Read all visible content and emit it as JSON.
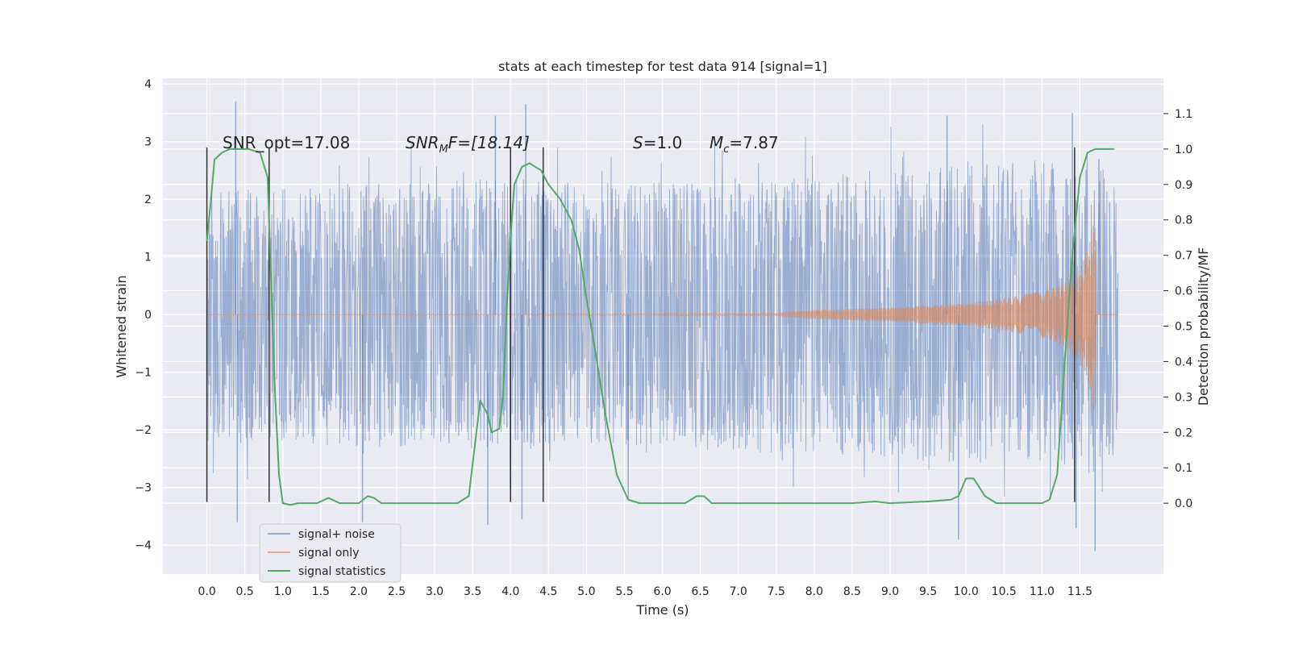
{
  "chart_data": {
    "type": "line",
    "title": "stats at each timestep for test data 914 [signal=1]",
    "xlabel": "Time (s)",
    "ylabel": "Whitened strain",
    "y2label": "Detection probability/MF",
    "xlim": [
      -0.58,
      12.6
    ],
    "ylim": [
      -4.5,
      4.1
    ],
    "y2lim": [
      -0.2,
      1.2
    ],
    "xticks": [
      "0.0",
      "0.5",
      "1.0",
      "1.5",
      "2.0",
      "2.5",
      "3.0",
      "3.5",
      "4.0",
      "4.5",
      "5.0",
      "5.5",
      "6.0",
      "6.5",
      "7.0",
      "7.5",
      "8.0",
      "8.5",
      "9.0",
      "9.5",
      "10.0",
      "10.5",
      "11.0",
      "11.5"
    ],
    "yticks": [
      "4",
      "3",
      "2",
      "1",
      "0",
      "−1",
      "−2",
      "−3",
      "−4"
    ],
    "y2ticks": [
      "1.1",
      "1.0",
      "0.9",
      "0.8",
      "0.7",
      "0.6",
      "0.5",
      "0.4",
      "0.3",
      "0.2",
      "0.1",
      "0.0"
    ],
    "grid": true,
    "legend_placement": "lower-left",
    "colors": {
      "signal_noise": "#4c72b0",
      "signal_only": "#dd8452",
      "signal_statistics": "#55a868",
      "background": "#eaeaf2",
      "marker_lines": "#333333"
    },
    "annotations": {
      "snr_opt": "SNR_opt=17.08",
      "snr_mf_main": "SNR",
      "snr_mf_sub": "M",
      "snr_mf_rest": "F=[18.14]",
      "s_var": "S",
      "s_value": "=1.0",
      "mc_var": "M",
      "mc_sub": "c",
      "mc_value": "=7.87"
    },
    "time_range": [
      0.0,
      12.0
    ],
    "noise_envelope": [
      [
        0.0,
        2.2
      ],
      [
        1.0,
        2.2
      ],
      [
        2.0,
        2.3
      ],
      [
        3.0,
        2.3
      ],
      [
        4.0,
        2.4
      ],
      [
        5.0,
        2.3
      ],
      [
        6.0,
        2.3
      ],
      [
        7.0,
        2.4
      ],
      [
        8.0,
        2.4
      ],
      [
        9.0,
        2.5
      ],
      [
        10.0,
        2.6
      ],
      [
        11.0,
        2.6
      ],
      [
        12.0,
        2.5
      ]
    ],
    "noise_peaks": [
      [
        0.38,
        3.7
      ],
      [
        0.4,
        -3.6
      ],
      [
        2.05,
        -3.6
      ],
      [
        3.7,
        -3.65
      ],
      [
        3.8,
        3.45
      ],
      [
        4.15,
        -3.55
      ],
      [
        4.2,
        3.65
      ],
      [
        5.55,
        -3.2
      ],
      [
        9.75,
        3.45
      ],
      [
        9.9,
        -3.9
      ],
      [
        11.4,
        3.5
      ],
      [
        11.45,
        -3.7
      ],
      [
        11.7,
        -4.1
      ],
      [
        11.75,
        2.7
      ]
    ],
    "signal_envelope": [
      [
        0.0,
        0.0
      ],
      [
        7.5,
        0.02
      ],
      [
        8.0,
        0.08
      ],
      [
        9.0,
        0.12
      ],
      [
        10.0,
        0.2
      ],
      [
        10.5,
        0.28
      ],
      [
        11.0,
        0.4
      ],
      [
        11.3,
        0.55
      ],
      [
        11.5,
        0.8
      ],
      [
        11.6,
        1.1
      ],
      [
        11.65,
        1.5
      ],
      [
        11.68,
        1.8
      ],
      [
        11.7,
        1.2
      ],
      [
        11.72,
        0.0
      ]
    ],
    "signal_statistics": [
      [
        0.0,
        0.74
      ],
      [
        0.05,
        0.85
      ],
      [
        0.1,
        0.97
      ],
      [
        0.2,
        0.99
      ],
      [
        0.3,
        1.0
      ],
      [
        0.55,
        1.0
      ],
      [
        0.7,
        0.99
      ],
      [
        0.8,
        0.92
      ],
      [
        0.85,
        0.6
      ],
      [
        0.9,
        0.3
      ],
      [
        0.95,
        0.08
      ],
      [
        1.0,
        0.0
      ],
      [
        1.1,
        -0.005
      ],
      [
        1.2,
        0.0
      ],
      [
        1.45,
        0.0
      ],
      [
        1.6,
        0.015
      ],
      [
        1.75,
        0.0
      ],
      [
        2.0,
        0.0
      ],
      [
        2.12,
        0.02
      ],
      [
        2.2,
        0.015
      ],
      [
        2.3,
        0.0
      ],
      [
        2.5,
        0.0
      ],
      [
        3.3,
        0.0
      ],
      [
        3.45,
        0.02
      ],
      [
        3.6,
        0.29
      ],
      [
        3.7,
        0.25
      ],
      [
        3.75,
        0.2
      ],
      [
        3.85,
        0.21
      ],
      [
        3.9,
        0.3
      ],
      [
        3.95,
        0.55
      ],
      [
        4.0,
        0.75
      ],
      [
        4.05,
        0.9
      ],
      [
        4.15,
        0.95
      ],
      [
        4.25,
        0.96
      ],
      [
        4.4,
        0.94
      ],
      [
        4.5,
        0.9
      ],
      [
        4.65,
        0.86
      ],
      [
        4.8,
        0.8
      ],
      [
        4.9,
        0.72
      ],
      [
        5.0,
        0.58
      ],
      [
        5.1,
        0.45
      ],
      [
        5.25,
        0.25
      ],
      [
        5.4,
        0.08
      ],
      [
        5.55,
        0.01
      ],
      [
        5.7,
        0.0
      ],
      [
        6.3,
        0.0
      ],
      [
        6.45,
        0.02
      ],
      [
        6.55,
        0.02
      ],
      [
        6.65,
        0.0
      ],
      [
        7.0,
        0.0
      ],
      [
        8.5,
        0.0
      ],
      [
        8.8,
        0.005
      ],
      [
        9.0,
        0.0
      ],
      [
        9.5,
        0.005
      ],
      [
        9.8,
        0.01
      ],
      [
        9.9,
        0.02
      ],
      [
        10.0,
        0.07
      ],
      [
        10.1,
        0.07
      ],
      [
        10.25,
        0.02
      ],
      [
        10.4,
        0.0
      ],
      [
        11.0,
        0.0
      ],
      [
        11.1,
        0.01
      ],
      [
        11.2,
        0.08
      ],
      [
        11.3,
        0.4
      ],
      [
        11.4,
        0.7
      ],
      [
        11.5,
        0.92
      ],
      [
        11.6,
        0.99
      ],
      [
        11.7,
        1.0
      ],
      [
        11.8,
        1.0
      ],
      [
        11.95,
        1.0
      ]
    ],
    "marker_lines": [
      {
        "x": 0.0,
        "y_from": -3.25,
        "y_to": 2.9
      },
      {
        "x": 0.82,
        "y_from": -3.25,
        "y_to": 2.9
      },
      {
        "x": 4.0,
        "y_from": -3.25,
        "y_to": 2.9
      },
      {
        "x": 4.43,
        "y_from": -3.25,
        "y_to": 2.9
      },
      {
        "x": 11.43,
        "y_from": -3.25,
        "y_to": 2.9
      }
    ],
    "legend": [
      {
        "label": "signal+ noise",
        "color": "#4c72b0"
      },
      {
        "label": "signal only",
        "color": "#dd8452"
      },
      {
        "label": "signal statistics",
        "color": "#55a868"
      }
    ]
  }
}
